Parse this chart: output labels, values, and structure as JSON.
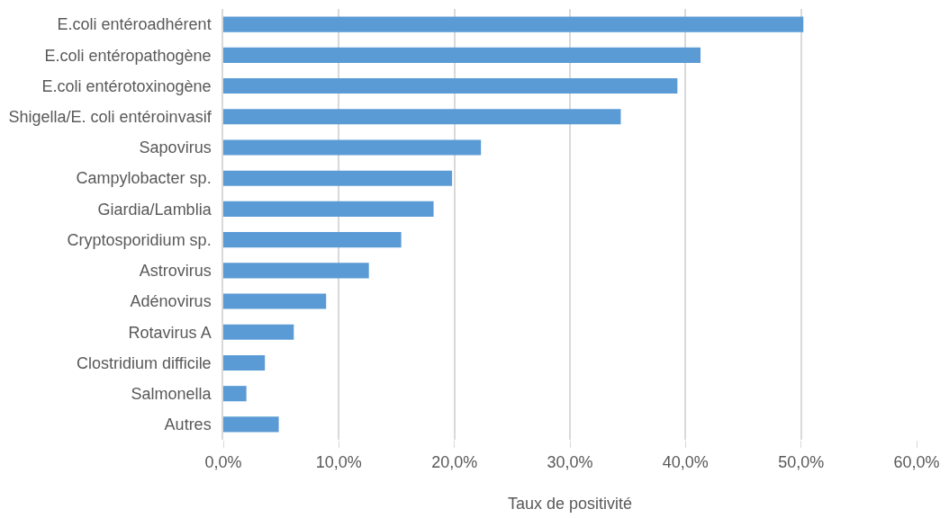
{
  "chart_data": {
    "type": "bar",
    "orientation": "horizontal",
    "xlabel": "Taux de positivité",
    "categories": [
      "E.coli entéroadhérent",
      "E.coli entéropathogène",
      "E.coli entérotoxinogène",
      "Shigella/E. coli entéroinvasif",
      "Sapovirus",
      "Campylobacter sp.",
      "Giardia/Lamblia",
      "Cryptosporidium sp.",
      "Astrovirus",
      "Adénovirus",
      "Rotavirus A",
      "Clostridium difficile",
      "Salmonella",
      "Autres"
    ],
    "values": [
      50.2,
      41.3,
      39.3,
      34.4,
      22.3,
      19.8,
      18.2,
      15.4,
      12.6,
      8.9,
      6.1,
      3.6,
      2.0,
      4.8
    ],
    "color": "#5b9bd5",
    "xlim": [
      0,
      60
    ],
    "xticks": [
      {
        "value": 0,
        "label": "0,0%"
      },
      {
        "value": 10,
        "label": "10,0%"
      },
      {
        "value": 20,
        "label": "20,0%"
      },
      {
        "value": 30,
        "label": "30,0%"
      },
      {
        "value": 40,
        "label": "40,0%"
      },
      {
        "value": 50,
        "label": "50,0%"
      },
      {
        "value": 60,
        "label": "60,0%"
      }
    ],
    "grid": "x"
  }
}
